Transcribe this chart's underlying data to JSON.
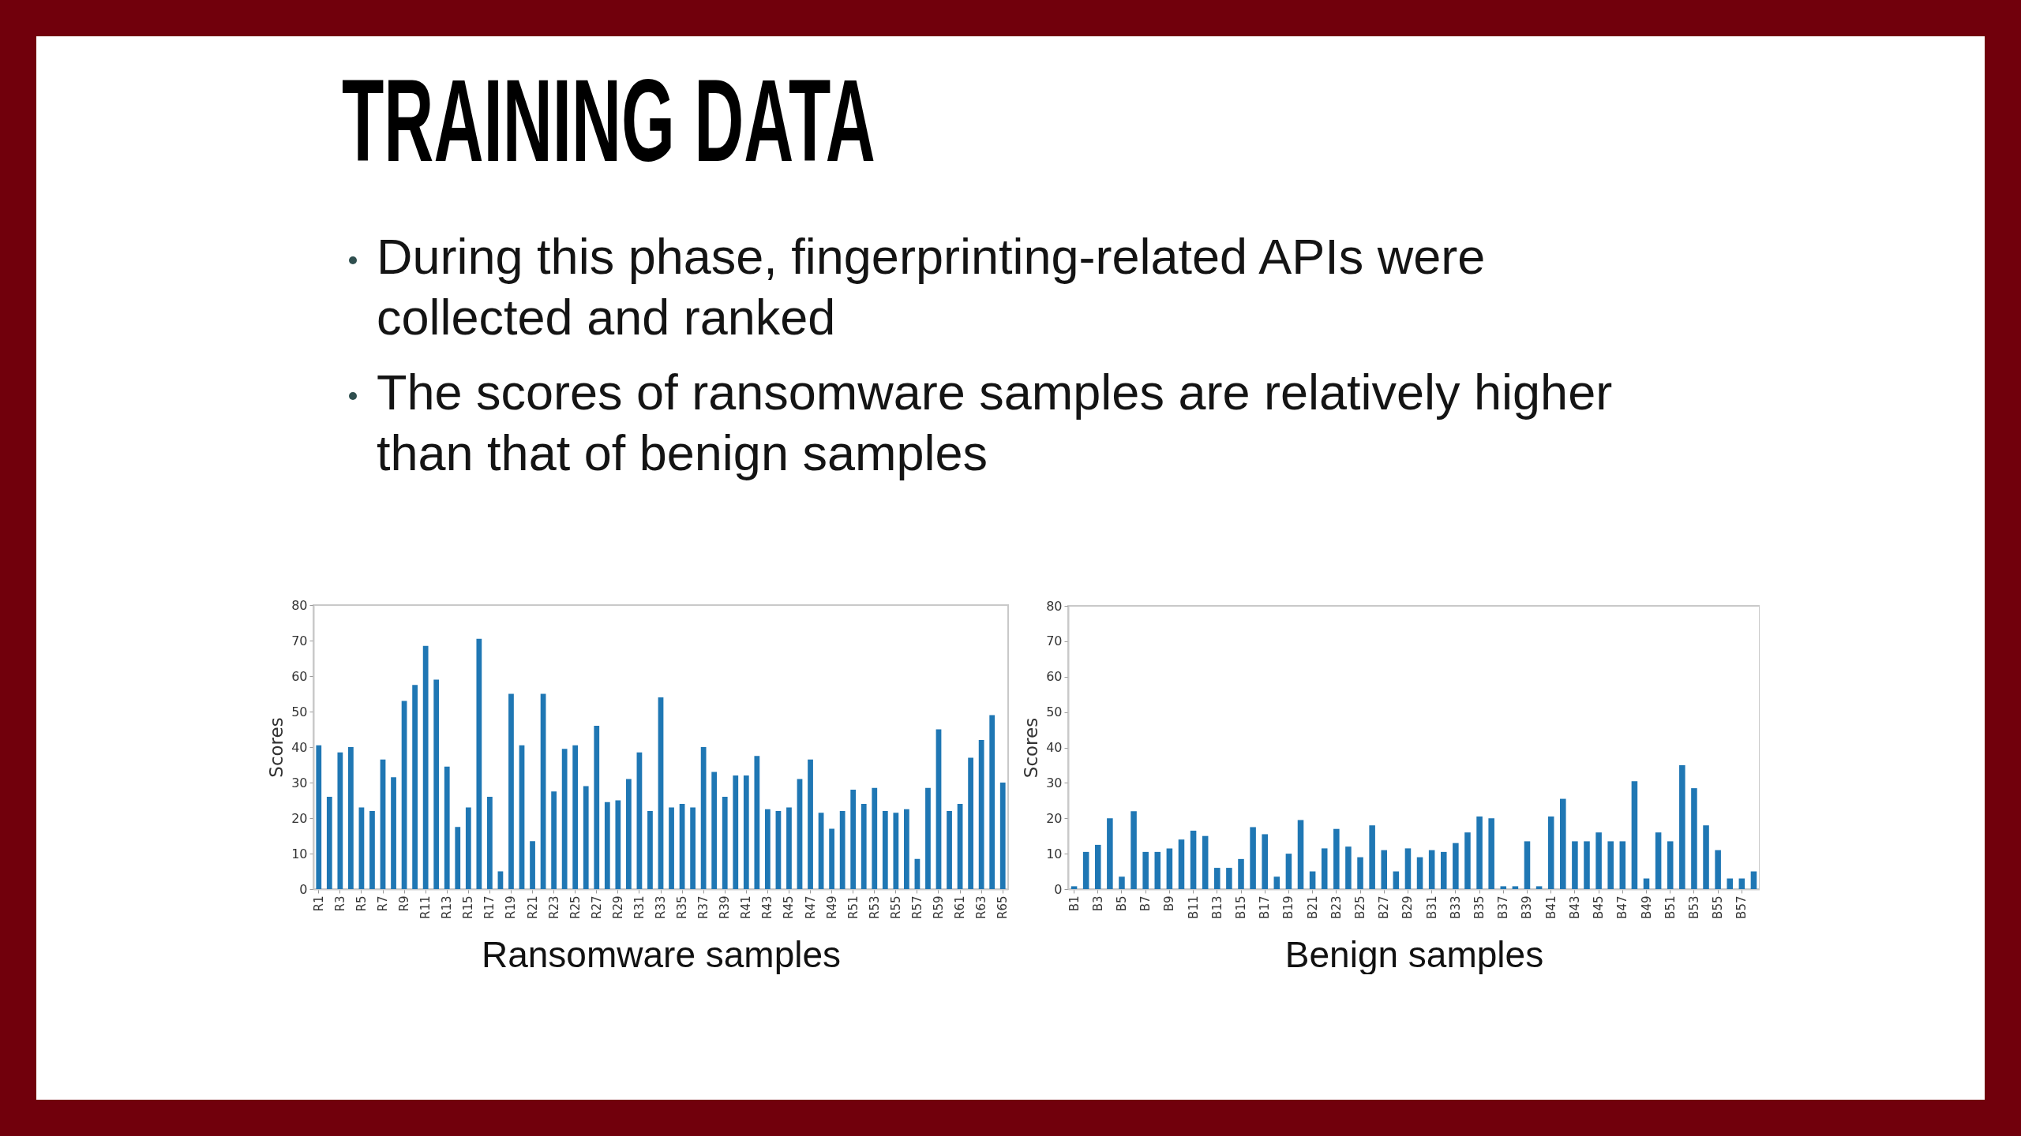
{
  "chart_data": [
    {
      "type": "other",
      "title": "TRAINING DATA",
      "annotations": [
        "During this phase, fingerprinting-related APIs were collected and ranked",
        "The scores of ransomware samples are relatively higher than that of benign samples"
      ]
    },
    {
      "type": "bar",
      "xlabel": "Ransomware samples",
      "ylabel": "Scores",
      "categories": [
        "R1",
        null,
        "R3",
        null,
        "R5",
        null,
        "R7",
        null,
        "R9",
        null,
        "R11",
        null,
        "R13",
        null,
        "R15",
        null,
        "R17",
        null,
        "R19",
        null,
        "R21",
        null,
        "R23",
        null,
        "R25",
        null,
        "R27",
        null,
        "R29",
        null,
        "R31",
        null,
        "R33",
        null,
        "R35",
        null,
        "R37",
        null,
        "R39",
        null,
        "R41",
        null,
        "R43",
        null,
        "R45",
        null,
        "R47",
        null,
        "R49",
        null,
        "R51",
        null,
        "R53",
        null,
        "R55",
        null,
        "R57",
        null,
        "R59",
        null,
        "R61",
        null,
        "R63",
        null,
        "R65"
      ],
      "values": [
        40.5,
        26,
        38.5,
        40,
        23,
        22,
        36.5,
        31.5,
        53,
        57.5,
        68.5,
        59,
        34.5,
        17.5,
        23,
        70.5,
        26,
        5,
        55,
        40.5,
        13.5,
        55,
        27.5,
        39.5,
        40.5,
        29,
        46,
        24.5,
        25,
        31,
        38.5,
        22,
        54,
        23,
        24,
        23,
        40,
        33,
        26,
        32,
        32,
        37.5,
        22.5,
        22,
        23,
        31,
        36.5,
        21.5,
        17,
        22,
        28,
        24,
        28.5,
        22,
        21.5,
        22.5,
        8.5,
        28.5,
        45,
        22,
        24,
        37,
        42,
        49,
        30
      ],
      "color": "#1f77b4",
      "ylim": [
        0,
        80
      ],
      "yticks": [
        0,
        10,
        20,
        30,
        40,
        50,
        60,
        70,
        80
      ]
    },
    {
      "type": "bar",
      "xlabel": "Benign samples",
      "ylabel": "Scores",
      "categories": [
        "B1",
        null,
        "B3",
        null,
        "B5",
        null,
        "B7",
        null,
        "B9",
        null,
        "B11",
        null,
        "B13",
        null,
        "B15",
        null,
        "B17",
        null,
        "B19",
        null,
        "B21",
        null,
        "B23",
        null,
        "B25",
        null,
        "B27",
        null,
        "B29",
        null,
        "B31",
        null,
        "B33",
        null,
        "B35",
        null,
        "B37",
        null,
        "B39",
        null,
        "B41",
        null,
        "B43",
        null,
        "B45",
        null,
        "B47",
        null,
        "B49",
        null,
        "B51",
        null,
        "B53",
        null,
        "B55",
        null,
        "B57",
        null
      ],
      "values": [
        0.8,
        10.5,
        12.5,
        20,
        3.5,
        22,
        10.5,
        10.5,
        11.5,
        14,
        16.5,
        15,
        6,
        6,
        8.5,
        17.5,
        15.5,
        3.5,
        10,
        19.5,
        5,
        11.5,
        17,
        12,
        9,
        18,
        11,
        5,
        11.5,
        9,
        11,
        10.5,
        13,
        16,
        20.5,
        20,
        0.8,
        0.8,
        13.5,
        0.8,
        20.5,
        25.5,
        13.5,
        13.5,
        16,
        13.5,
        13.5,
        30.5,
        3,
        16,
        13.5,
        35,
        28.5,
        18,
        11,
        3,
        3,
        5
      ],
      "color": "#1f77b4",
      "ylim": [
        0,
        80
      ],
      "yticks": [
        0,
        10,
        20,
        30,
        40,
        50,
        60,
        70,
        80
      ]
    }
  ]
}
